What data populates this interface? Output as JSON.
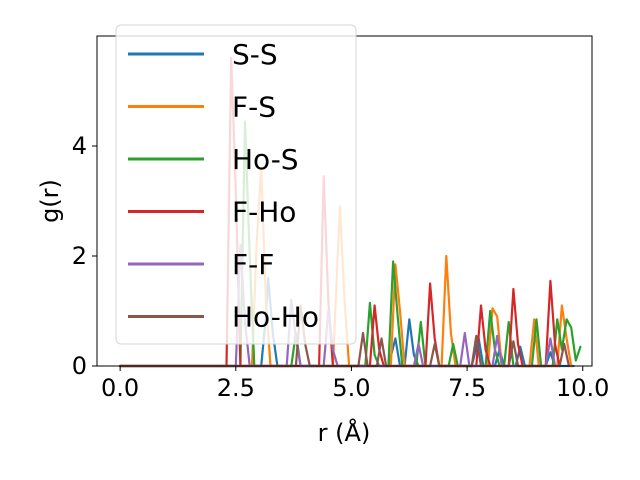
{
  "chart_data": {
    "type": "line",
    "xlabel": "r (Å)",
    "ylabel": "g(r)",
    "xlim": [
      -0.5,
      10.2
    ],
    "ylim": [
      0,
      6.0
    ],
    "xticks": [
      "0.0",
      "2.5",
      "5.0",
      "7.5",
      "10.0"
    ],
    "yticks": [
      "0",
      "2",
      "4"
    ],
    "legend_position": "upper-left",
    "series": [
      {
        "name": "S-S",
        "color": "#1f77b4",
        "points": [
          [
            0,
            0
          ],
          [
            3.05,
            0
          ],
          [
            3.15,
            0.9
          ],
          [
            3.2,
            1.6
          ],
          [
            3.3,
            0.6
          ],
          [
            3.4,
            0
          ],
          [
            5.8,
            0
          ],
          [
            5.95,
            0.5
          ],
          [
            6.05,
            0
          ],
          [
            6.15,
            0
          ],
          [
            6.25,
            0.85
          ],
          [
            6.35,
            0.2
          ],
          [
            6.45,
            0
          ],
          [
            7.6,
            0
          ],
          [
            7.75,
            0.5
          ],
          [
            7.85,
            0
          ],
          [
            8.1,
            0
          ],
          [
            8.2,
            0.3
          ],
          [
            8.3,
            0
          ],
          [
            8.55,
            0
          ],
          [
            8.65,
            0.35
          ],
          [
            8.75,
            0
          ],
          [
            9.2,
            0
          ],
          [
            9.3,
            0.25
          ],
          [
            9.4,
            0
          ],
          [
            9.8,
            0
          ]
        ]
      },
      {
        "name": "F-S",
        "color": "#ff7f0e",
        "points": [
          [
            0,
            0
          ],
          [
            2.85,
            0
          ],
          [
            2.95,
            2.2
          ],
          [
            3.05,
            3.6
          ],
          [
            3.15,
            1.2
          ],
          [
            3.25,
            0
          ],
          [
            4.6,
            0
          ],
          [
            4.75,
            2.9
          ],
          [
            4.85,
            1.2
          ],
          [
            4.95,
            0
          ],
          [
            5.85,
            0
          ],
          [
            5.95,
            1.85
          ],
          [
            6.05,
            1.0
          ],
          [
            6.15,
            0
          ],
          [
            6.95,
            0
          ],
          [
            7.05,
            2.0
          ],
          [
            7.15,
            0.6
          ],
          [
            7.25,
            0
          ],
          [
            7.95,
            0
          ],
          [
            8.05,
            1.05
          ],
          [
            8.15,
            0.9
          ],
          [
            8.25,
            0
          ],
          [
            8.85,
            0
          ],
          [
            8.95,
            0.85
          ],
          [
            9.05,
            0
          ],
          [
            9.45,
            0
          ],
          [
            9.55,
            1.1
          ],
          [
            9.65,
            0.5
          ],
          [
            9.75,
            0
          ]
        ]
      },
      {
        "name": "Ho-S",
        "color": "#2ca02c",
        "points": [
          [
            0,
            0
          ],
          [
            2.6,
            0
          ],
          [
            2.7,
            4.45
          ],
          [
            2.8,
            2.0
          ],
          [
            2.9,
            0
          ],
          [
            3.7,
            0
          ],
          [
            3.8,
            0.6
          ],
          [
            3.9,
            0
          ],
          [
            5.3,
            0
          ],
          [
            5.4,
            1.15
          ],
          [
            5.5,
            0.2
          ],
          [
            5.6,
            0
          ],
          [
            5.8,
            0
          ],
          [
            5.9,
            1.9
          ],
          [
            6.0,
            0.9
          ],
          [
            6.1,
            0
          ],
          [
            6.4,
            0
          ],
          [
            6.5,
            0.8
          ],
          [
            6.6,
            0
          ],
          [
            7.1,
            0
          ],
          [
            7.2,
            0.4
          ],
          [
            7.3,
            0
          ],
          [
            7.9,
            0
          ],
          [
            8.0,
            1.0
          ],
          [
            8.1,
            0.3
          ],
          [
            8.2,
            0
          ],
          [
            8.3,
            0
          ],
          [
            8.4,
            0.8
          ],
          [
            8.5,
            0
          ],
          [
            8.9,
            0
          ],
          [
            9.0,
            0.85
          ],
          [
            9.1,
            0
          ],
          [
            9.35,
            0
          ],
          [
            9.45,
            0.85
          ],
          [
            9.55,
            0.3
          ],
          [
            9.65,
            0.85
          ],
          [
            9.75,
            0.7
          ],
          [
            9.85,
            0.1
          ],
          [
            9.95,
            0.35
          ]
        ]
      },
      {
        "name": "F-Ho",
        "color": "#d62728",
        "points": [
          [
            0,
            0
          ],
          [
            2.3,
            0
          ],
          [
            2.4,
            5.6
          ],
          [
            2.5,
            3.2
          ],
          [
            2.6,
            0
          ],
          [
            4.3,
            0
          ],
          [
            4.4,
            3.45
          ],
          [
            4.5,
            1.2
          ],
          [
            4.6,
            0
          ],
          [
            5.4,
            0
          ],
          [
            5.5,
            1.1
          ],
          [
            5.6,
            0.3
          ],
          [
            5.7,
            0
          ],
          [
            6.6,
            0
          ],
          [
            6.7,
            1.5
          ],
          [
            6.8,
            0.5
          ],
          [
            6.9,
            0
          ],
          [
            7.7,
            0
          ],
          [
            7.8,
            1.1
          ],
          [
            7.9,
            0.3
          ],
          [
            8.0,
            0
          ],
          [
            8.4,
            0
          ],
          [
            8.5,
            1.4
          ],
          [
            8.6,
            0.4
          ],
          [
            8.7,
            0
          ],
          [
            9.2,
            0
          ],
          [
            9.3,
            1.55
          ],
          [
            9.4,
            0.4
          ],
          [
            9.5,
            0
          ]
        ]
      },
      {
        "name": "F-F",
        "color": "#9467bd",
        "points": [
          [
            0,
            0
          ],
          [
            2.5,
            0
          ],
          [
            2.6,
            2.2
          ],
          [
            2.7,
            0.8
          ],
          [
            2.8,
            0
          ],
          [
            3.6,
            0
          ],
          [
            3.7,
            1.2
          ],
          [
            3.8,
            0.5
          ],
          [
            3.9,
            0
          ],
          [
            4.4,
            0
          ],
          [
            4.5,
            1.0
          ],
          [
            4.6,
            0.3
          ],
          [
            4.7,
            0
          ],
          [
            6.35,
            0
          ],
          [
            6.45,
            0.4
          ],
          [
            6.55,
            0
          ],
          [
            7.35,
            0
          ],
          [
            7.45,
            0.6
          ],
          [
            7.55,
            0
          ],
          [
            8.05,
            0
          ],
          [
            8.15,
            0.55
          ],
          [
            8.25,
            0
          ],
          [
            9.2,
            0
          ],
          [
            9.3,
            0.5
          ],
          [
            9.4,
            0
          ]
        ]
      },
      {
        "name": "Ho-Ho",
        "color": "#8c564b",
        "points": [
          [
            0,
            0
          ],
          [
            3.8,
            0
          ],
          [
            3.9,
            1.1
          ],
          [
            4.0,
            0.4
          ],
          [
            4.1,
            0
          ],
          [
            5.15,
            0
          ],
          [
            5.25,
            0.6
          ],
          [
            5.35,
            0
          ],
          [
            5.55,
            0
          ],
          [
            5.65,
            0.5
          ],
          [
            5.75,
            0
          ],
          [
            6.7,
            0
          ],
          [
            6.8,
            0.4
          ],
          [
            6.9,
            0
          ],
          [
            7.6,
            0
          ],
          [
            7.7,
            0.55
          ],
          [
            7.8,
            0
          ],
          [
            8.4,
            0
          ],
          [
            8.5,
            0.45
          ],
          [
            8.6,
            0
          ],
          [
            9.5,
            0
          ],
          [
            9.6,
            0.4
          ],
          [
            9.7,
            0
          ]
        ]
      }
    ]
  }
}
